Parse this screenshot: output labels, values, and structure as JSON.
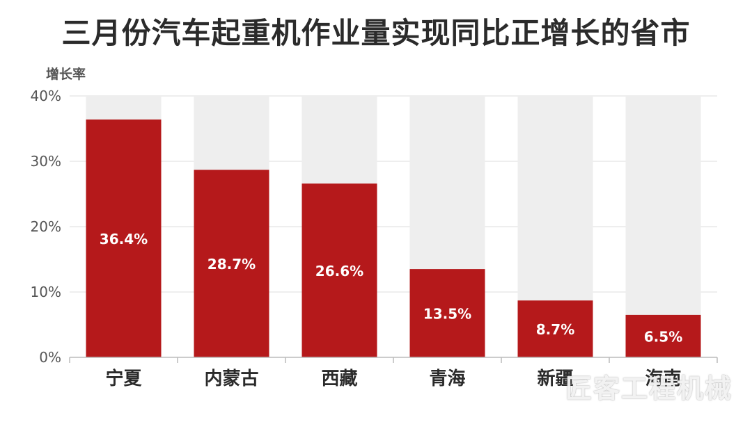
{
  "chart_data": {
    "type": "bar",
    "title": "三月份汽车起重机作业量实现同比正增长的省市",
    "ylabel": "增长率",
    "xlabel": "",
    "categories": [
      "宁夏",
      "内蒙古",
      "西藏",
      "青海",
      "新疆",
      "海南"
    ],
    "values": [
      36.4,
      28.7,
      26.6,
      13.5,
      8.7,
      6.5
    ],
    "value_labels": [
      "36.4%",
      "28.7%",
      "26.6%",
      "13.5%",
      "8.7%",
      "6.5%"
    ],
    "ylim": [
      0,
      40
    ],
    "yticks": [
      0,
      10,
      20,
      30,
      40
    ],
    "ytick_labels": [
      "0%",
      "10%",
      "20%",
      "30%",
      "40%"
    ],
    "grid": true,
    "background_bars": true,
    "colors": {
      "bar": "#b5191b",
      "background_bar": "#eeeeee",
      "grid": "#dddddd"
    }
  },
  "watermark": "匠客工程机械"
}
